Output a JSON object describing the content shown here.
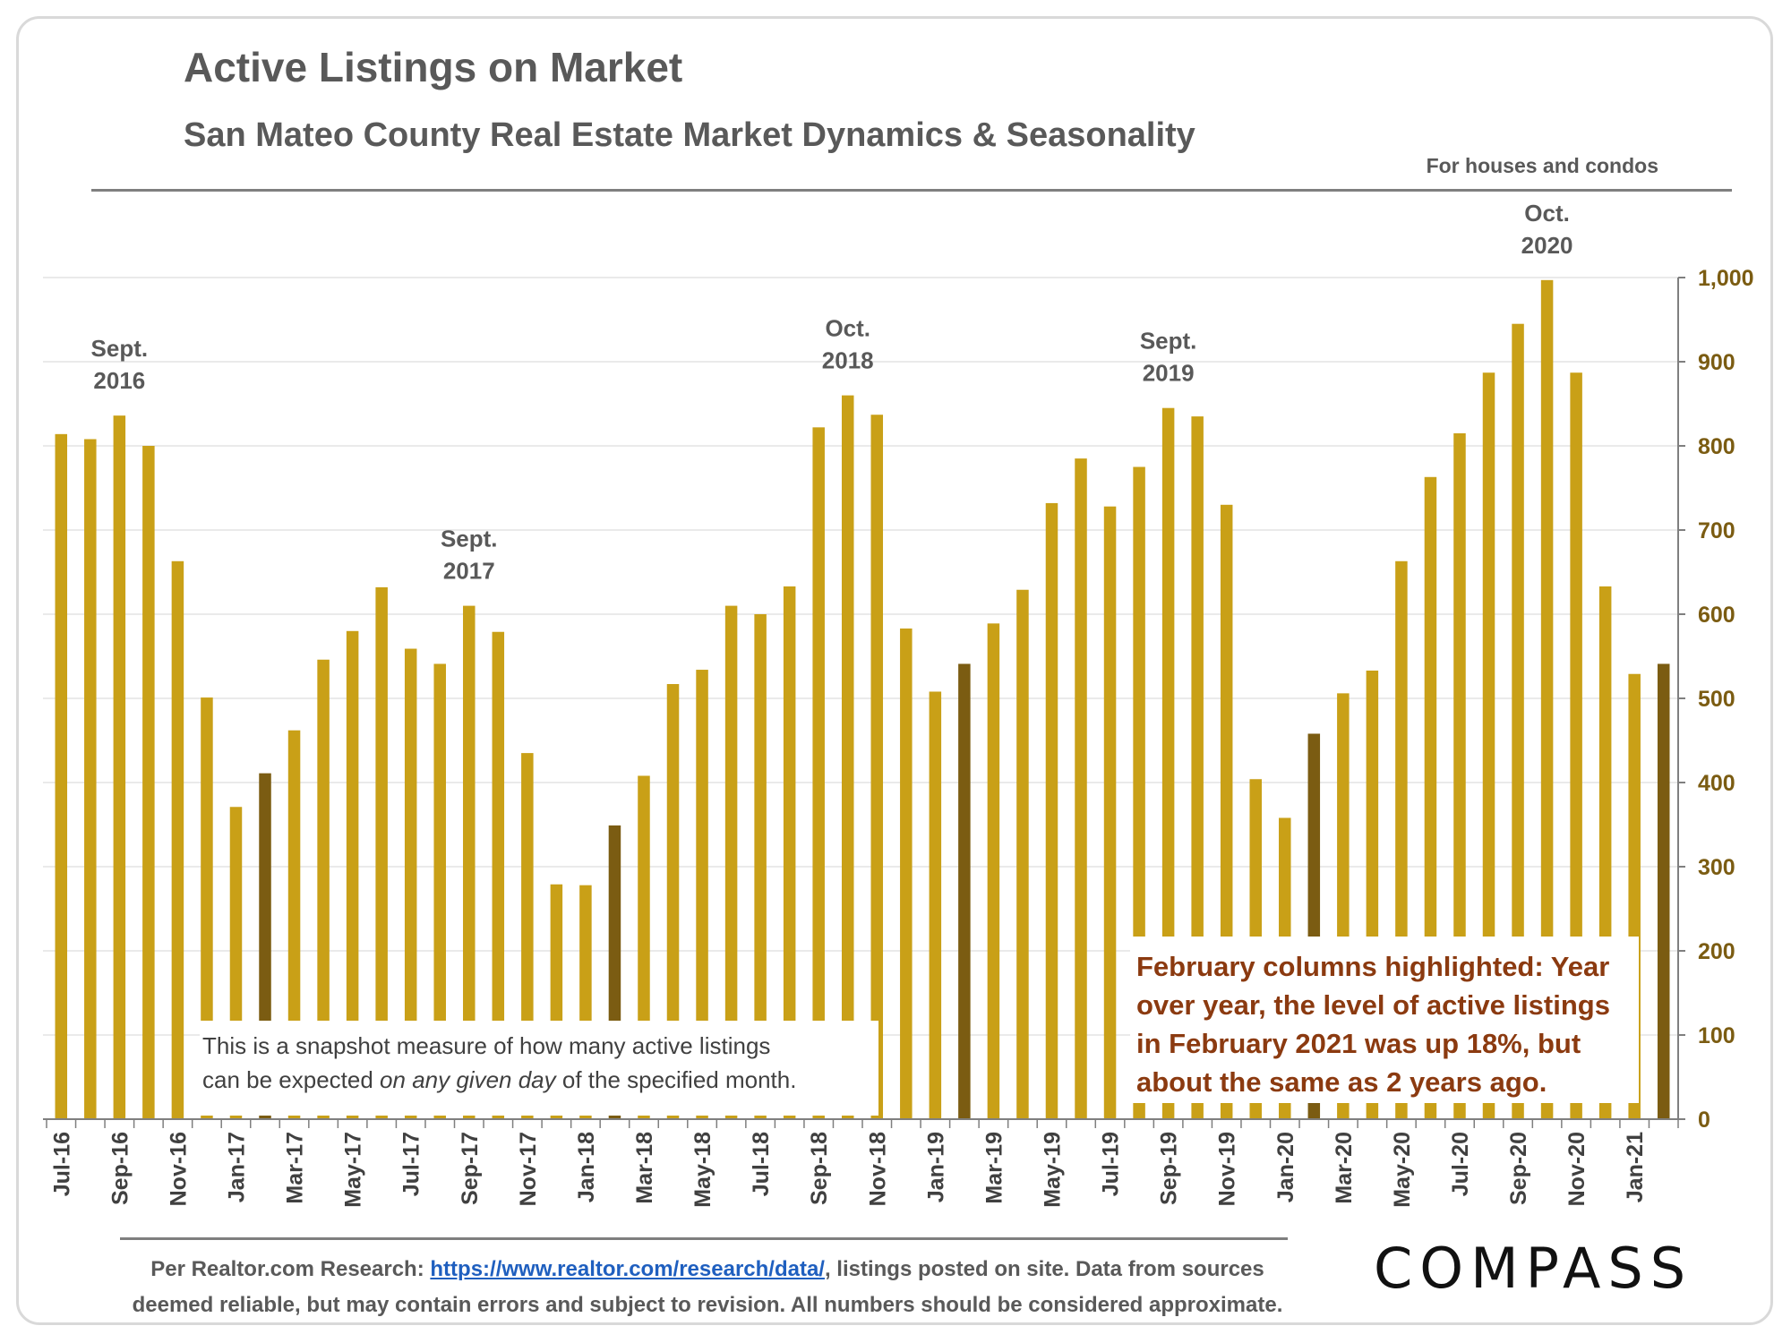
{
  "header": {
    "title": "Active Listings on Market",
    "subtitle": "San Mateo County Real Estate Market Dynamics & Seasonality",
    "scope_note": "For houses and condos"
  },
  "colors": {
    "bar": "#C9A017",
    "february_bar": "#7B5C12",
    "axis_text": "#7B5C12",
    "callout_text": "#8B3A10"
  },
  "annotations": [
    {
      "line1": "Sept.",
      "line2": "2016",
      "category": "Sep-16"
    },
    {
      "line1": "Sept.",
      "line2": "2017",
      "category": "Sep-17"
    },
    {
      "line1": "Oct.",
      "line2": "2018",
      "category": "Oct-18"
    },
    {
      "line1": "Sept.",
      "line2": "2019",
      "category": "Sep-19"
    },
    {
      "line1": "Oct.",
      "line2": "2020",
      "category": "Oct-20"
    }
  ],
  "notes": {
    "snapshot_prefix": "This is a snapshot measure of how many active listings",
    "snapshot_line2_a": "can be expected ",
    "snapshot_line2_em": "on any given day",
    "snapshot_line2_b": " of the specified month.",
    "callout_lines": [
      "February columns highlighted: Year",
      "over year, the level of active listings",
      "in February 2021 was up 18%, but",
      "about the same as 2 years ago."
    ]
  },
  "footer": {
    "prefix": "Per Realtor.com Research:",
    "link": "https://www.realtor.com/research/data/",
    "after_link": ", listings posted on site. Data from sources",
    "line2": "deemed reliable, but may contain errors and subject to revision. All numbers should be considered approximate."
  },
  "logo": "COMPASS",
  "chart_data": {
    "type": "bar",
    "categories": [
      "Jul-16",
      "Aug-16",
      "Sep-16",
      "Oct-16",
      "Nov-16",
      "Dec-16",
      "Jan-17",
      "Feb-17",
      "Mar-17",
      "Apr-17",
      "May-17",
      "Jun-17",
      "Jul-17",
      "Aug-17",
      "Sep-17",
      "Oct-17",
      "Nov-17",
      "Dec-17",
      "Jan-18",
      "Feb-18",
      "Mar-18",
      "Apr-18",
      "May-18",
      "Jun-18",
      "Jul-18",
      "Aug-18",
      "Sep-18",
      "Oct-18",
      "Nov-18",
      "Dec-18",
      "Jan-19",
      "Feb-19",
      "Mar-19",
      "Apr-19",
      "May-19",
      "Jun-19",
      "Jul-19",
      "Aug-19",
      "Sep-19",
      "Oct-19",
      "Nov-19",
      "Dec-19",
      "Jan-20",
      "Feb-20",
      "Mar-20",
      "Apr-20",
      "May-20",
      "Jun-20",
      "Jul-20",
      "Aug-20",
      "Sep-20",
      "Oct-20",
      "Nov-20",
      "Dec-20",
      "Jan-21",
      "Feb-21"
    ],
    "tick_labels": [
      "Jul-16",
      "Sep-16",
      "Nov-16",
      "Jan-17",
      "Mar-17",
      "May-17",
      "Jul-17",
      "Sep-17",
      "Nov-17",
      "Jan-18",
      "Mar-18",
      "May-18",
      "Jul-18",
      "Sep-18",
      "Nov-18",
      "Jan-19",
      "Mar-19",
      "May-19",
      "Jul-19",
      "Sep-19",
      "Nov-19",
      "Jan-20",
      "Mar-20",
      "May-20",
      "Jul-20",
      "Sep-20",
      "Nov-20",
      "Jan-21"
    ],
    "values": [
      814,
      808,
      836,
      800,
      663,
      501,
      371,
      411,
      462,
      546,
      580,
      632,
      559,
      541,
      610,
      579,
      435,
      279,
      278,
      349,
      408,
      517,
      534,
      610,
      600,
      633,
      822,
      860,
      837,
      583,
      508,
      541,
      589,
      629,
      732,
      785,
      728,
      775,
      845,
      835,
      730,
      404,
      358,
      458,
      506,
      533,
      663,
      763,
      815,
      887,
      945,
      997,
      887,
      633,
      529,
      541
    ],
    "highlighted": [
      "Feb-17",
      "Feb-18",
      "Feb-19",
      "Feb-20",
      "Feb-21"
    ],
    "y_ticks": [
      "0",
      "100",
      "200",
      "300",
      "400",
      "500",
      "600",
      "700",
      "800",
      "900",
      "1,000"
    ],
    "ylim": [
      0,
      1000
    ],
    "y_axis_side": "right",
    "grid": true,
    "legend": false
  }
}
